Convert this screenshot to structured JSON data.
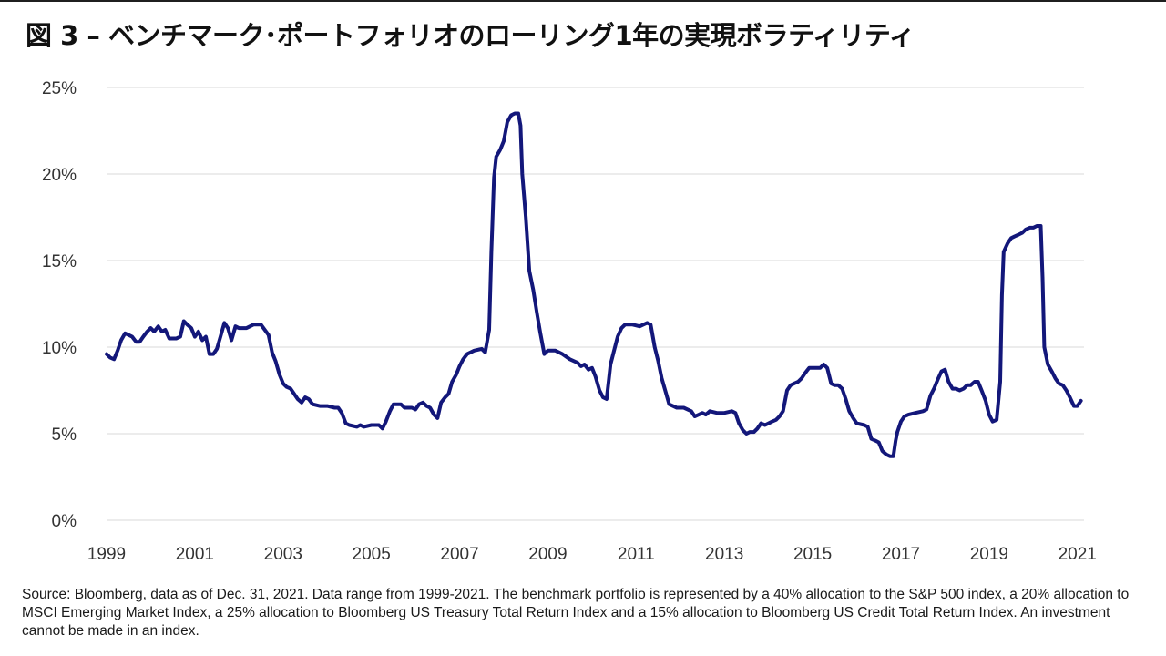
{
  "title": "図 3 – ベンチマーク･ポートフォリオのローリング1年の実現ボラティリティ",
  "source_note": "Source: Bloomberg, data as of Dec. 31, 2021. Data range from 1999-2021. The benchmark portfolio is represented by a 40% allocation to the S&P 500 index, a 20% allocation to MSCI Emerging Market Index, a 25% allocation to Bloomberg US Treasury Total Return Index and a 15% allocation to Bloomberg US Credit Total Return Index. An investment cannot be made in an index.",
  "colors": {
    "line": "#13177a",
    "grid": "#d9d9d9",
    "text": "#333333"
  },
  "chart_data": {
    "type": "line",
    "title": "図 3 – ベンチマーク･ポートフォリオのローリング1年の実現ボラティリティ",
    "xlabel": "",
    "ylabel": "",
    "xlim": [
      1999,
      2021.15
    ],
    "ylim": [
      0,
      25
    ],
    "grid": true,
    "x_ticks": [
      1999,
      2001,
      2003,
      2005,
      2007,
      2009,
      2011,
      2013,
      2015,
      2017,
      2019,
      2021
    ],
    "x_tick_labels": [
      "1999",
      "2001",
      "2003",
      "2005",
      "2007",
      "2009",
      "2011",
      "2013",
      "2015",
      "2017",
      "2019",
      "2021"
    ],
    "y_ticks": [
      0,
      5,
      10,
      15,
      20,
      25
    ],
    "y_tick_labels": [
      "0%",
      "5%",
      "10%",
      "15%",
      "20%",
      "25%"
    ],
    "series": [
      {
        "name": "",
        "points": [
          [
            1999.0,
            9.6
          ],
          [
            1999.08,
            9.4
          ],
          [
            1999.17,
            9.3
          ],
          [
            1999.25,
            9.8
          ],
          [
            1999.33,
            10.4
          ],
          [
            1999.42,
            10.8
          ],
          [
            1999.5,
            10.7
          ],
          [
            1999.58,
            10.6
          ],
          [
            1999.67,
            10.3
          ],
          [
            1999.75,
            10.3
          ],
          [
            1999.83,
            10.6
          ],
          [
            1999.92,
            10.9
          ],
          [
            2000.0,
            11.1
          ],
          [
            2000.08,
            10.9
          ],
          [
            2000.17,
            11.2
          ],
          [
            2000.25,
            10.9
          ],
          [
            2000.33,
            11.0
          ],
          [
            2000.42,
            10.5
          ],
          [
            2000.5,
            10.5
          ],
          [
            2000.58,
            10.5
          ],
          [
            2000.67,
            10.6
          ],
          [
            2000.75,
            11.5
          ],
          [
            2000.83,
            11.3
          ],
          [
            2000.92,
            11.1
          ],
          [
            2001.0,
            10.6
          ],
          [
            2001.08,
            10.9
          ],
          [
            2001.17,
            10.4
          ],
          [
            2001.25,
            10.6
          ],
          [
            2001.33,
            9.6
          ],
          [
            2001.42,
            9.6
          ],
          [
            2001.5,
            9.9
          ],
          [
            2001.58,
            10.6
          ],
          [
            2001.67,
            11.4
          ],
          [
            2001.75,
            11.1
          ],
          [
            2001.83,
            10.4
          ],
          [
            2001.92,
            11.2
          ],
          [
            2002.0,
            11.1
          ],
          [
            2002.17,
            11.1
          ],
          [
            2002.33,
            11.3
          ],
          [
            2002.5,
            11.3
          ],
          [
            2002.67,
            10.7
          ],
          [
            2002.75,
            9.7
          ],
          [
            2002.83,
            9.2
          ],
          [
            2002.92,
            8.4
          ],
          [
            2003.0,
            7.9
          ],
          [
            2003.08,
            7.7
          ],
          [
            2003.17,
            7.6
          ],
          [
            2003.25,
            7.3
          ],
          [
            2003.33,
            7.0
          ],
          [
            2003.42,
            6.8
          ],
          [
            2003.5,
            7.1
          ],
          [
            2003.58,
            7.0
          ],
          [
            2003.67,
            6.7
          ],
          [
            2003.83,
            6.6
          ],
          [
            2004.0,
            6.6
          ],
          [
            2004.17,
            6.5
          ],
          [
            2004.25,
            6.5
          ],
          [
            2004.33,
            6.2
          ],
          [
            2004.42,
            5.6
          ],
          [
            2004.5,
            5.5
          ],
          [
            2004.67,
            5.4
          ],
          [
            2004.75,
            5.5
          ],
          [
            2004.83,
            5.4
          ],
          [
            2005.0,
            5.5
          ],
          [
            2005.17,
            5.5
          ],
          [
            2005.25,
            5.3
          ],
          [
            2005.33,
            5.7
          ],
          [
            2005.42,
            6.3
          ],
          [
            2005.5,
            6.7
          ],
          [
            2005.67,
            6.7
          ],
          [
            2005.75,
            6.5
          ],
          [
            2005.83,
            6.5
          ],
          [
            2005.92,
            6.5
          ],
          [
            2006.0,
            6.4
          ],
          [
            2006.08,
            6.7
          ],
          [
            2006.17,
            6.8
          ],
          [
            2006.25,
            6.6
          ],
          [
            2006.33,
            6.5
          ],
          [
            2006.42,
            6.1
          ],
          [
            2006.5,
            5.9
          ],
          [
            2006.58,
            6.8
          ],
          [
            2006.67,
            7.1
          ],
          [
            2006.75,
            7.3
          ],
          [
            2006.83,
            8.0
          ],
          [
            2006.92,
            8.4
          ],
          [
            2007.0,
            8.9
          ],
          [
            2007.08,
            9.3
          ],
          [
            2007.17,
            9.6
          ],
          [
            2007.33,
            9.8
          ],
          [
            2007.5,
            9.9
          ],
          [
            2007.58,
            9.7
          ],
          [
            2007.67,
            11.0
          ],
          [
            2007.72,
            15.5
          ],
          [
            2007.78,
            19.8
          ],
          [
            2007.83,
            21.0
          ],
          [
            2007.92,
            21.4
          ],
          [
            2008.0,
            21.9
          ],
          [
            2008.08,
            23.0
          ],
          [
            2008.17,
            23.4
          ],
          [
            2008.25,
            23.5
          ],
          [
            2008.33,
            23.5
          ],
          [
            2008.38,
            22.8
          ],
          [
            2008.42,
            20.0
          ],
          [
            2008.5,
            17.5
          ],
          [
            2008.58,
            14.4
          ],
          [
            2008.67,
            13.3
          ],
          [
            2008.75,
            12.0
          ],
          [
            2008.83,
            10.8
          ],
          [
            2008.92,
            9.6
          ],
          [
            2009.0,
            9.8
          ],
          [
            2009.17,
            9.8
          ],
          [
            2009.33,
            9.6
          ],
          [
            2009.5,
            9.3
          ],
          [
            2009.67,
            9.1
          ],
          [
            2009.75,
            8.9
          ],
          [
            2009.83,
            9.0
          ],
          [
            2009.92,
            8.7
          ],
          [
            2010.0,
            8.8
          ],
          [
            2010.08,
            8.3
          ],
          [
            2010.17,
            7.5
          ],
          [
            2010.25,
            7.1
          ],
          [
            2010.33,
            7.0
          ],
          [
            2010.38,
            8.1
          ],
          [
            2010.42,
            9.0
          ],
          [
            2010.5,
            9.8
          ],
          [
            2010.58,
            10.6
          ],
          [
            2010.67,
            11.1
          ],
          [
            2010.75,
            11.3
          ],
          [
            2010.92,
            11.3
          ],
          [
            2011.08,
            11.2
          ],
          [
            2011.25,
            11.4
          ],
          [
            2011.33,
            11.3
          ],
          [
            2011.42,
            10.0
          ],
          [
            2011.5,
            9.2
          ],
          [
            2011.58,
            8.2
          ],
          [
            2011.67,
            7.4
          ],
          [
            2011.75,
            6.7
          ],
          [
            2011.92,
            6.5
          ],
          [
            2012.08,
            6.5
          ],
          [
            2012.25,
            6.3
          ],
          [
            2012.33,
            6.0
          ],
          [
            2012.42,
            6.1
          ],
          [
            2012.5,
            6.2
          ],
          [
            2012.58,
            6.1
          ],
          [
            2012.67,
            6.3
          ],
          [
            2012.83,
            6.2
          ],
          [
            2013.0,
            6.2
          ],
          [
            2013.17,
            6.3
          ],
          [
            2013.25,
            6.2
          ],
          [
            2013.33,
            5.6
          ],
          [
            2013.42,
            5.2
          ],
          [
            2013.5,
            5.0
          ],
          [
            2013.58,
            5.1
          ],
          [
            2013.67,
            5.1
          ],
          [
            2013.75,
            5.3
          ],
          [
            2013.83,
            5.6
          ],
          [
            2013.92,
            5.5
          ],
          [
            2014.08,
            5.7
          ],
          [
            2014.17,
            5.8
          ],
          [
            2014.25,
            6.0
          ],
          [
            2014.33,
            6.3
          ],
          [
            2014.42,
            7.5
          ],
          [
            2014.5,
            7.8
          ],
          [
            2014.58,
            7.9
          ],
          [
            2014.67,
            8.0
          ],
          [
            2014.75,
            8.2
          ],
          [
            2014.83,
            8.5
          ],
          [
            2014.92,
            8.8
          ],
          [
            2015.0,
            8.8
          ],
          [
            2015.08,
            8.8
          ],
          [
            2015.17,
            8.8
          ],
          [
            2015.25,
            9.0
          ],
          [
            2015.33,
            8.8
          ],
          [
            2015.42,
            7.9
          ],
          [
            2015.5,
            7.8
          ],
          [
            2015.58,
            7.8
          ],
          [
            2015.67,
            7.6
          ],
          [
            2015.75,
            7.0
          ],
          [
            2015.83,
            6.3
          ],
          [
            2015.92,
            5.9
          ],
          [
            2016.0,
            5.6
          ],
          [
            2016.17,
            5.5
          ],
          [
            2016.25,
            5.4
          ],
          [
            2016.33,
            4.7
          ],
          [
            2016.42,
            4.6
          ],
          [
            2016.5,
            4.5
          ],
          [
            2016.58,
            4.0
          ],
          [
            2016.67,
            3.8
          ],
          [
            2016.75,
            3.7
          ],
          [
            2016.83,
            3.7
          ],
          [
            2016.88,
            4.6
          ],
          [
            2016.92,
            5.1
          ],
          [
            2017.0,
            5.7
          ],
          [
            2017.08,
            6.0
          ],
          [
            2017.17,
            6.1
          ],
          [
            2017.33,
            6.2
          ],
          [
            2017.5,
            6.3
          ],
          [
            2017.58,
            6.4
          ],
          [
            2017.67,
            7.2
          ],
          [
            2017.75,
            7.6
          ],
          [
            2017.83,
            8.1
          ],
          [
            2017.92,
            8.6
          ],
          [
            2018.0,
            8.7
          ],
          [
            2018.08,
            8.0
          ],
          [
            2018.17,
            7.6
          ],
          [
            2018.25,
            7.6
          ],
          [
            2018.33,
            7.5
          ],
          [
            2018.42,
            7.6
          ],
          [
            2018.5,
            7.8
          ],
          [
            2018.58,
            7.8
          ],
          [
            2018.67,
            8.0
          ],
          [
            2018.75,
            8.0
          ],
          [
            2018.83,
            7.5
          ],
          [
            2018.92,
            6.9
          ],
          [
            2019.0,
            6.1
          ],
          [
            2019.08,
            5.7
          ],
          [
            2019.17,
            5.8
          ],
          [
            2019.25,
            8.0
          ],
          [
            2019.29,
            13.0
          ],
          [
            2019.33,
            15.5
          ],
          [
            2019.42,
            16.0
          ],
          [
            2019.5,
            16.3
          ],
          [
            2019.58,
            16.4
          ],
          [
            2019.67,
            16.5
          ],
          [
            2019.75,
            16.6
          ],
          [
            2019.83,
            16.8
          ],
          [
            2019.92,
            16.9
          ],
          [
            2020.0,
            16.9
          ],
          [
            2020.08,
            17.0
          ],
          [
            2020.17,
            17.0
          ],
          [
            2020.21,
            14.0
          ],
          [
            2020.25,
            10.0
          ],
          [
            2020.33,
            9.0
          ],
          [
            2020.42,
            8.6
          ],
          [
            2020.5,
            8.2
          ],
          [
            2020.58,
            7.9
          ],
          [
            2020.67,
            7.8
          ],
          [
            2020.75,
            7.5
          ],
          [
            2020.83,
            7.1
          ],
          [
            2020.92,
            6.6
          ],
          [
            2021.0,
            6.6
          ],
          [
            2021.08,
            6.9
          ]
        ]
      }
    ]
  }
}
